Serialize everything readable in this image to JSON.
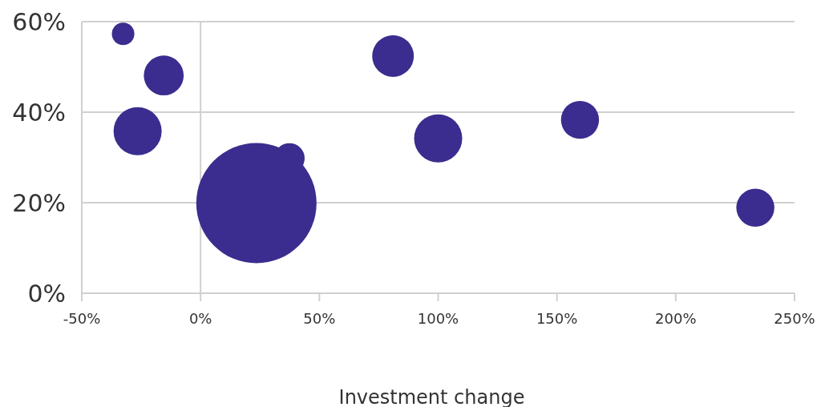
{
  "chart_data": {
    "type": "bubble",
    "xlabel": "Investment change",
    "x": [
      -32.6,
      -15.5,
      -26.5,
      23.5,
      37.4,
      81,
      100,
      159.7,
      233.5
    ],
    "series": [
      {
        "color": "#3a2d8f",
        "values": [
          57.3,
          48.1,
          35.8,
          19.9,
          29.8,
          52.4,
          34.2,
          38.3,
          18.9
        ],
        "sizes": [
          0.035,
          0.11,
          0.16,
          1,
          0.064,
          0.12,
          0.16,
          0.1,
          0.1
        ]
      }
    ],
    "xlim": [
      -50,
      250
    ],
    "xticks": [
      {
        "value": -50,
        "label": "-50%"
      },
      {
        "value": 0,
        "label": "0%"
      },
      {
        "value": 50,
        "label": "50%"
      },
      {
        "value": 100,
        "label": "100%"
      },
      {
        "value": 150,
        "label": "150%"
      },
      {
        "value": 200,
        "label": "200%"
      },
      {
        "value": 250,
        "label": "250%"
      }
    ],
    "ylim": [
      0,
      60
    ],
    "yticks": [
      {
        "value": 0,
        "label": "0%"
      },
      {
        "value": 20,
        "label": "20%"
      },
      {
        "value": 40,
        "label": "40%"
      },
      {
        "value": 60,
        "label": "60%"
      }
    ],
    "ref_lines": [
      {
        "axis": "x",
        "value": 0,
        "color": "#d0d0d0"
      }
    ],
    "grid": "y"
  }
}
